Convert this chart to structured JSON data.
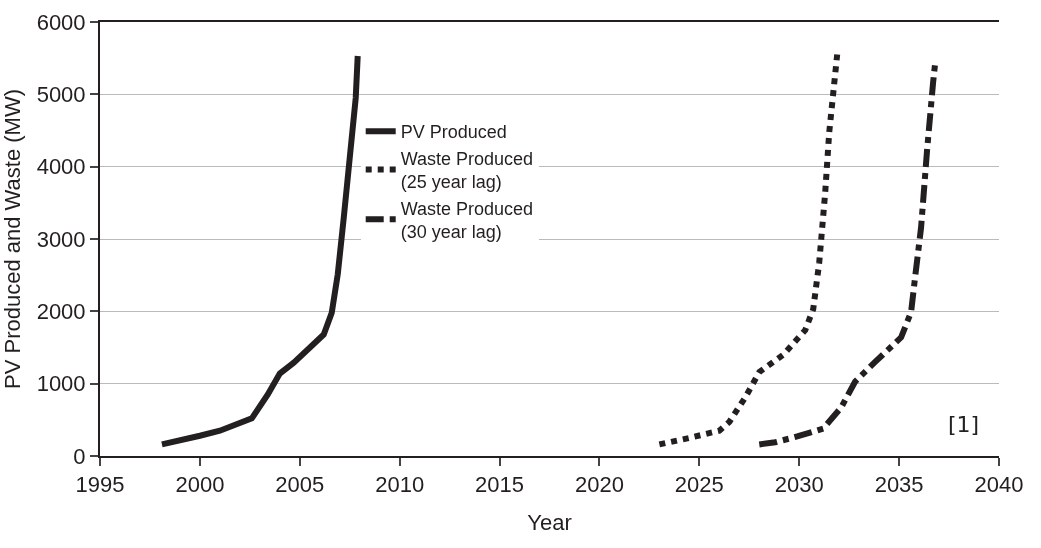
{
  "chart_data": {
    "type": "line",
    "xlabel": "Year",
    "ylabel": "PV Produced and Waste (MW)",
    "xlim": [
      1995,
      2040
    ],
    "xticks": [
      1995,
      2000,
      2005,
      2010,
      2015,
      2020,
      2025,
      2030,
      2035,
      2040
    ],
    "ylim": [
      0,
      6000
    ],
    "yticks": [
      0,
      1000,
      2000,
      3000,
      4000,
      5000,
      6000
    ],
    "grid": "y",
    "legend": "top",
    "marker": "none",
    "annotations": [
      "[1]"
    ],
    "series": [
      {
        "name": "PV Produced",
        "color": "#231f20",
        "line_style": "solid",
        "x": [
          1998.1,
          2000,
          2001,
          2002.6,
          2003.4,
          2004,
          2004.7,
          2006.2,
          2006.6,
          2006.9,
          2007.2,
          2007.5,
          2007.8,
          2007.9
        ],
        "values": [
          160,
          280,
          350,
          520,
          850,
          1140,
          1290,
          1680,
          1980,
          2510,
          3290,
          4120,
          4950,
          5530
        ]
      },
      {
        "name": "Waste Produced\n(25 year lag)",
        "color": "#231f20",
        "line_style": "dotted",
        "x": [
          2023.0,
          2024.5,
          2026.0,
          2026.5,
          2027.3,
          2028.0,
          2029.2,
          2030.3,
          2030.7,
          2031.0,
          2031.3,
          2031.5,
          2031.9
        ],
        "values": [
          160,
          250,
          350,
          470,
          810,
          1160,
          1400,
          1740,
          2030,
          2670,
          3640,
          4470,
          5550
        ]
      },
      {
        "name": "Waste Produced\n(30 year lag)",
        "color": "#231f20",
        "line_style": "dashed",
        "x": [
          2028.0,
          2028.8,
          2029.9,
          2031.2,
          2032.1,
          2032.8,
          2033.8,
          2035.1,
          2035.6,
          2035.8,
          2036.1,
          2036.4,
          2036.7,
          2036.8
        ],
        "values": [
          160,
          190,
          270,
          380,
          670,
          1030,
          1300,
          1640,
          1990,
          2470,
          3160,
          4230,
          5160,
          5420
        ]
      }
    ]
  }
}
